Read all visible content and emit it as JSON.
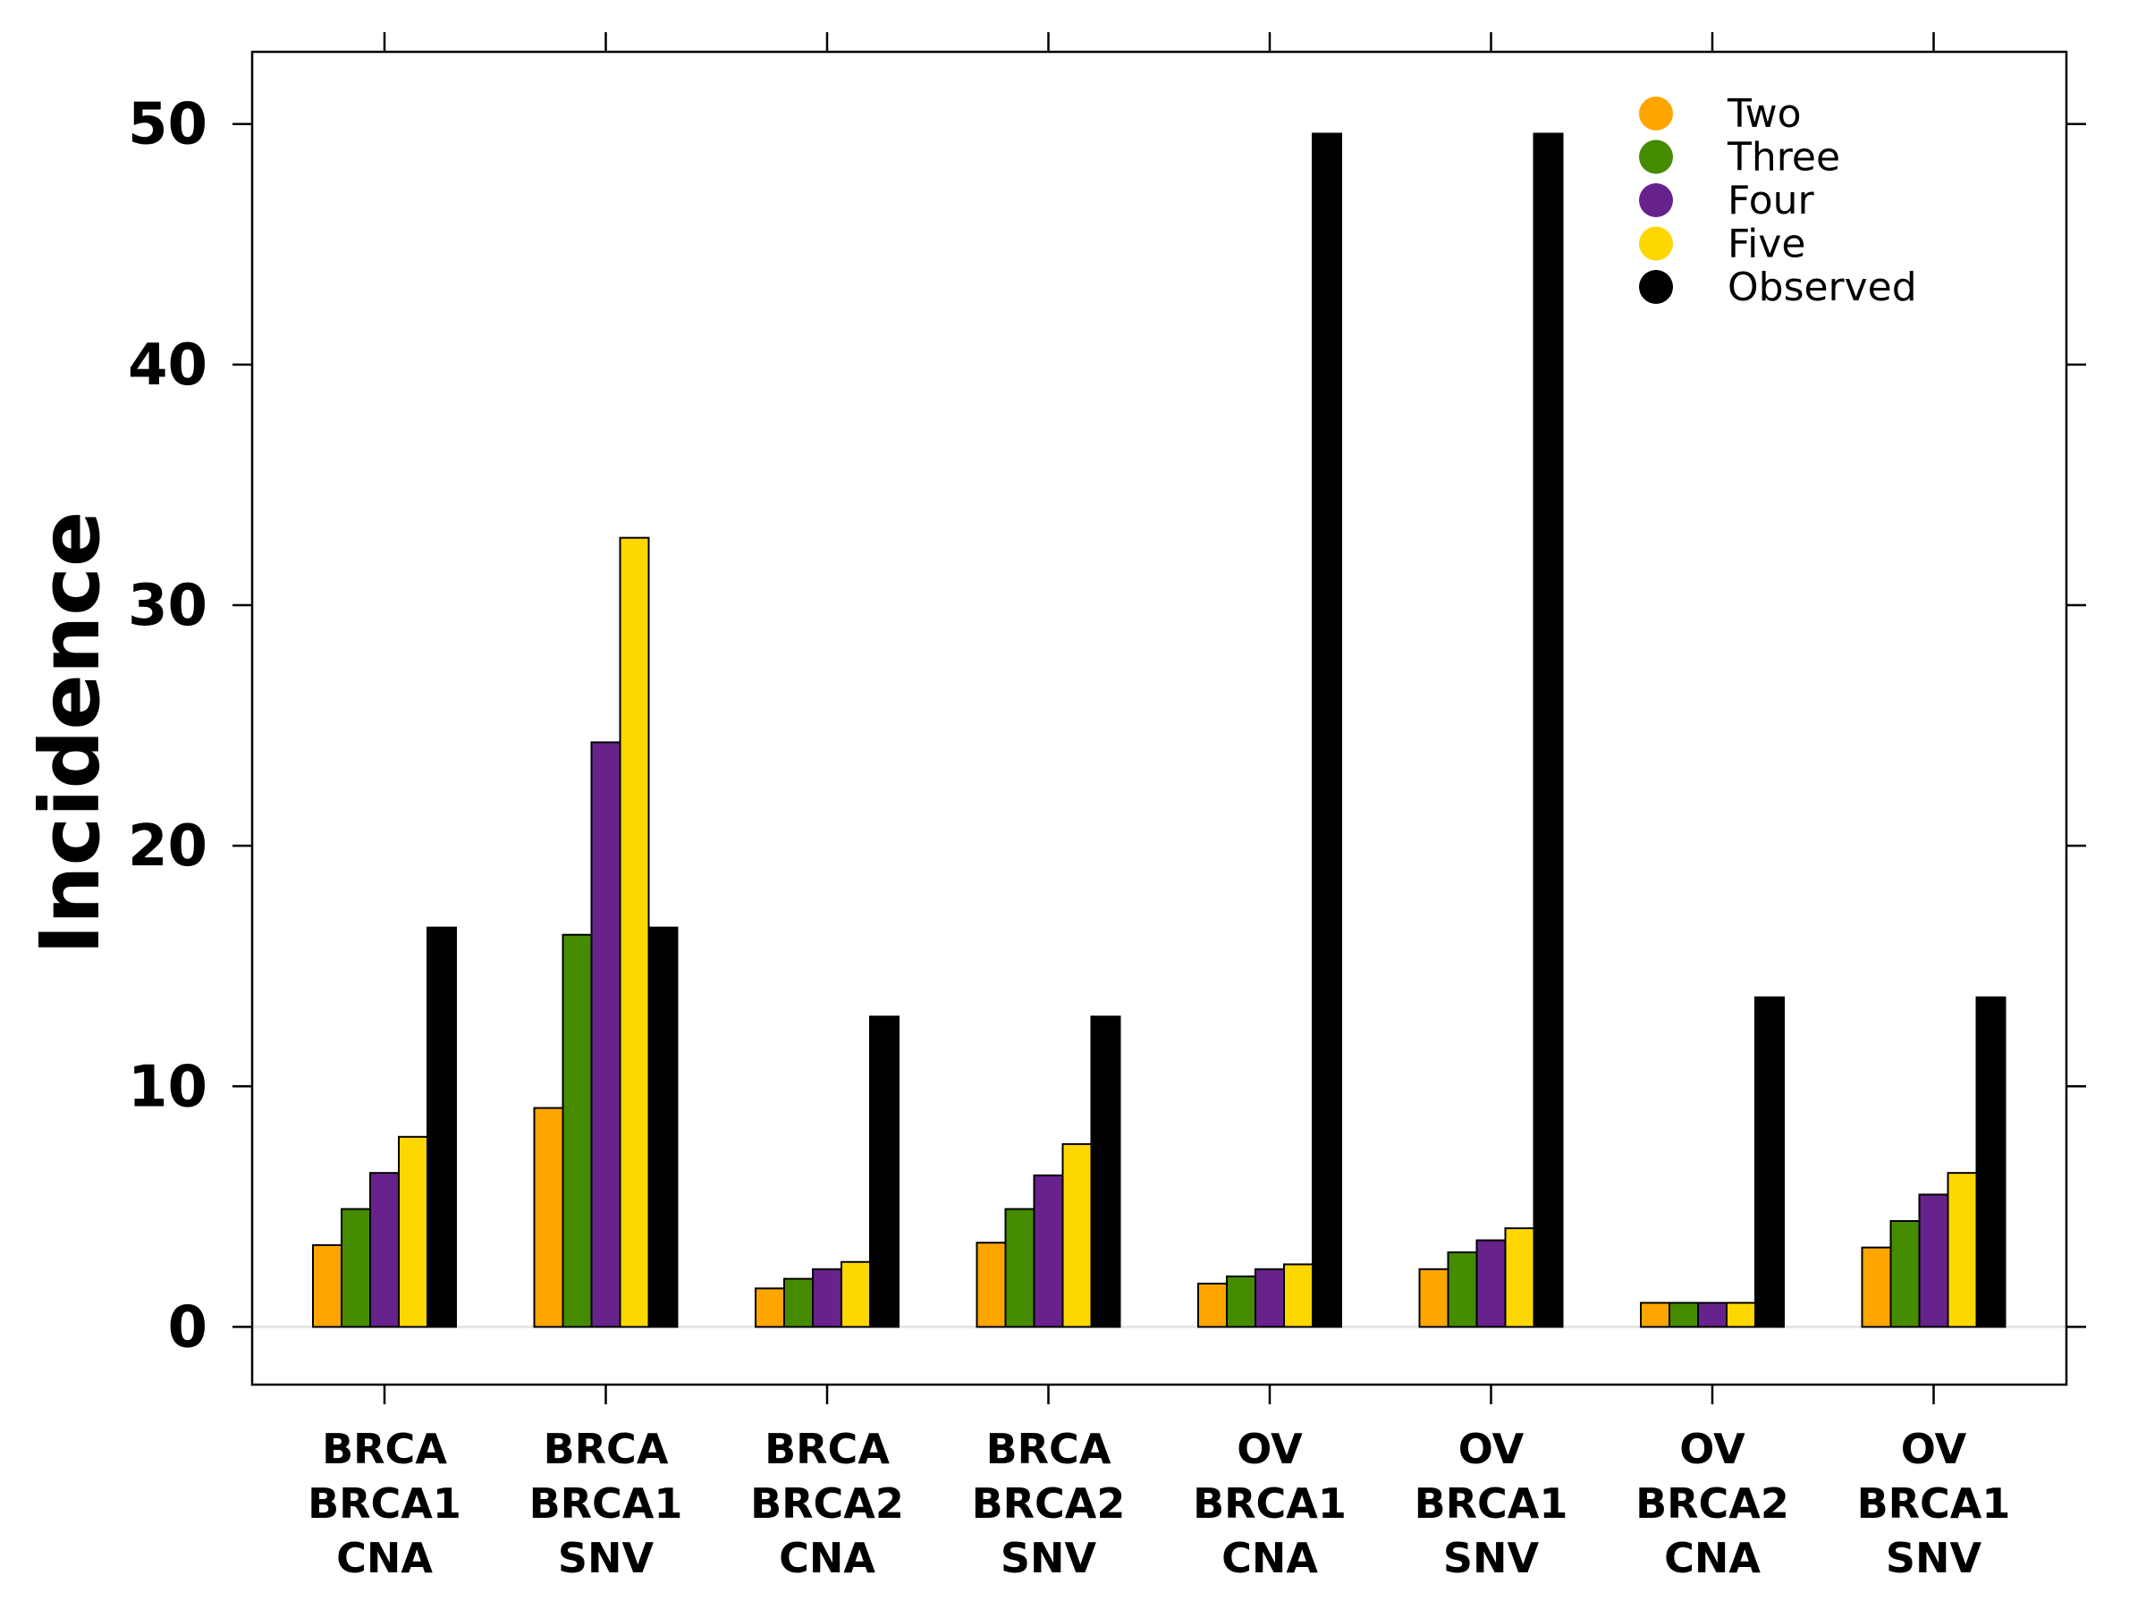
{
  "chart_data": {
    "type": "bar",
    "title": "",
    "xlabel": "",
    "ylabel": "Incidence",
    "ylim": [
      -2.4,
      53
    ],
    "yticks": [
      0,
      10,
      20,
      30,
      40,
      50
    ],
    "grid": false,
    "legend_position": "top-right",
    "categories": [
      [
        "BRCA",
        "BRCA1",
        "CNA"
      ],
      [
        "BRCA",
        "BRCA1",
        "SNV"
      ],
      [
        "BRCA",
        "BRCA2",
        "CNA"
      ],
      [
        "BRCA",
        "BRCA2",
        "SNV"
      ],
      [
        "OV",
        "BRCA1",
        "CNA"
      ],
      [
        "OV",
        "BRCA1",
        "SNV"
      ],
      [
        "OV",
        "BRCA2",
        "CNA"
      ],
      [
        "OV",
        "BRCA1",
        "SNV"
      ]
    ],
    "series": [
      {
        "name": "Two",
        "color": "#FFA500",
        "values": [
          3.4,
          9.1,
          1.6,
          3.5,
          1.8,
          2.4,
          1.0,
          3.3
        ]
      },
      {
        "name": "Three",
        "color": "#458B00",
        "values": [
          4.9,
          16.3,
          2.0,
          4.9,
          2.1,
          3.1,
          1.0,
          4.4
        ]
      },
      {
        "name": "Four",
        "color": "#68228B",
        "values": [
          6.4,
          24.3,
          2.4,
          6.3,
          2.4,
          3.6,
          1.0,
          5.5
        ]
      },
      {
        "name": "Five",
        "color": "#FFD700",
        "values": [
          7.9,
          32.8,
          2.7,
          7.6,
          2.6,
          4.1,
          1.0,
          6.4
        ]
      },
      {
        "name": "Observed",
        "color": "#000000",
        "values": [
          16.6,
          16.6,
          12.9,
          12.9,
          49.6,
          49.6,
          13.7,
          13.7
        ]
      }
    ]
  }
}
